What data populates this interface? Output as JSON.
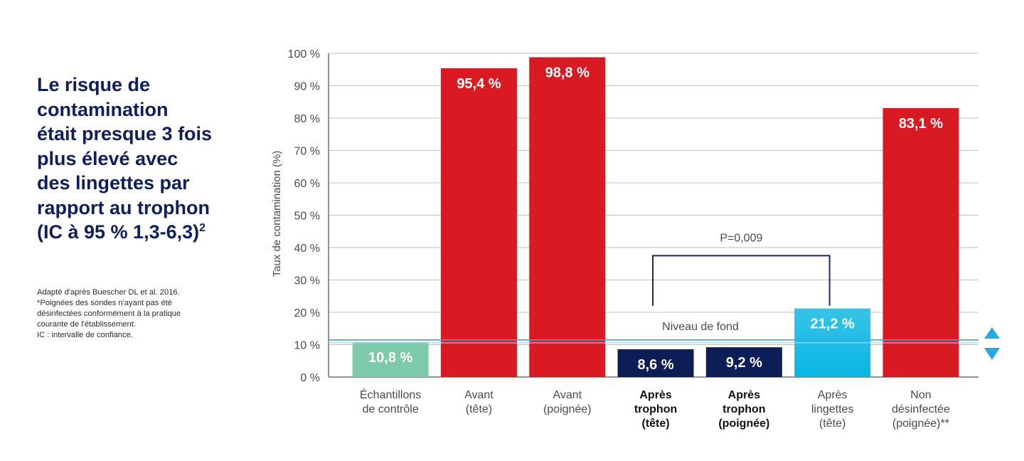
{
  "headline": {
    "lines": [
      "Le risque de",
      "contamination",
      "était presque 3 fois",
      "plus élevé avec",
      "des lingettes par",
      "rapport au trophon",
      "(IC à 95 % 1,3-6,3)"
    ],
    "superscript": "2"
  },
  "footnotes": [
    "Adapté d'après Buescher DL et al. 2016.",
    "*Poignées des sondes n'ayant pas été",
    "désinfectées conformément à la pratique",
    "courante de l'établissement.",
    "IC : intervalle de confiance."
  ],
  "chart_data": {
    "type": "bar",
    "ylabel": "Taux de contamination (%)",
    "ylim": [
      0,
      100
    ],
    "yticks": [
      0,
      10,
      20,
      30,
      40,
      50,
      60,
      70,
      80,
      90,
      100
    ],
    "ytick_labels": [
      "0 %",
      "10 %",
      "20 %",
      "30 %",
      "40 %",
      "50 %",
      "60 %",
      "70 %",
      "80 %",
      "90 %",
      "100 %"
    ],
    "grid": true,
    "categories": [
      {
        "lines": [
          "Échantillons",
          "de contrôle"
        ],
        "bold": false
      },
      {
        "lines": [
          "Avant",
          "(tête)"
        ],
        "bold": false
      },
      {
        "lines": [
          "Avant",
          "(poignée)"
        ],
        "bold": false
      },
      {
        "lines": [
          "Après",
          "trophon",
          "(tête)"
        ],
        "bold": true
      },
      {
        "lines": [
          "Après",
          "trophon",
          "(poignée)"
        ],
        "bold": true
      },
      {
        "lines": [
          "Après",
          "lingettes",
          "(tête)"
        ],
        "bold": false
      },
      {
        "lines": [
          "Non",
          "désinfectée",
          "(poignée)**"
        ],
        "bold": false
      }
    ],
    "values": [
      10.8,
      95.4,
      98.8,
      8.6,
      9.2,
      21.2,
      83.1
    ],
    "value_labels": [
      "10,8 %",
      "95,4 %",
      "98,8 %",
      "8,6 %",
      "9,2 %",
      "21,2 %",
      "83,1 %"
    ],
    "bar_colors": [
      "#7ccaa9",
      "#d81b23",
      "#d81b23",
      "#0d1d55",
      "#0d1d55",
      "gradient-cyan",
      "#d81b23"
    ],
    "reference_line": {
      "value": 10.8,
      "label": "Niveau de fond",
      "color": "#3aa7e0"
    },
    "bracket": {
      "from_category": 3,
      "to_category": 5,
      "level": 37.5,
      "label": "P=0,009"
    },
    "arrow_color": "#29a8e0"
  }
}
